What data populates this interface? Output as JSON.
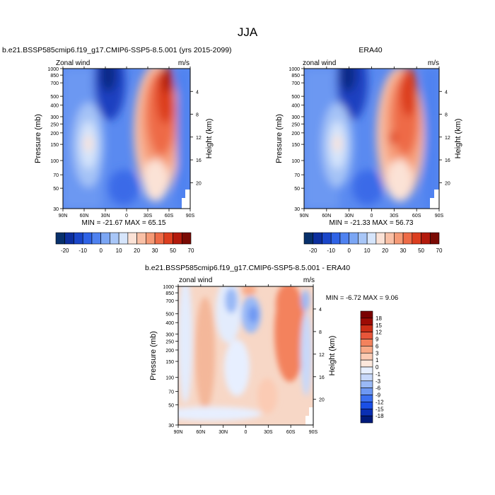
{
  "page": {
    "main_title": "JJA"
  },
  "colors": {
    "cmap_a": [
      "#08306b",
      "#0d2f9e",
      "#1a46c9",
      "#2f63e6",
      "#4f82f0",
      "#7ba6f4",
      "#a8c6f7",
      "#d6e5fb",
      "#fbe2d6",
      "#f9c0a6",
      "#f59a76",
      "#ee6b47",
      "#dc3e1f",
      "#b31a0c",
      "#7a0a04"
    ],
    "cmap_d": [
      "#001a7a",
      "#0a2fb3",
      "#1a4fe6",
      "#3b6ff0",
      "#6e98f3",
      "#9ab9f6",
      "#c7d8fa",
      "#e7efff",
      "#fde8dc",
      "#fbcbb4",
      "#f8a987",
      "#f3825d",
      "#e8563a",
      "#cc2e16",
      "#9c0b04",
      "#7a0000"
    ]
  },
  "panels": [
    {
      "subtitle": "b.e21.BSSP585cmip6.f19_g17.CMIP6-SSP5-8.5.001 (yrs 2015-2099)",
      "field_label": "Zonal wind",
      "units": "m/s",
      "stats": "MIN = -21.67   MAX =  65.15"
    },
    {
      "subtitle": "ERA40",
      "field_label": "zonal wind",
      "units": "m/s",
      "stats": "MIN = -21.33   MAX =  56.73"
    },
    {
      "subtitle": "b.e21.BSSP585cmip6.f19_g17.CMIP6-SSP5-8.5.001 - ERA40",
      "field_label": "zonal wind",
      "units": "m/s",
      "stats": "MIN =  -6.72   MAX =   9.06"
    }
  ],
  "chart_data": [
    {
      "type": "heatmap",
      "title": "b.e21.BSSP585cmip6.f19_g17.CMIP6-SSP5-8.5.001 (yrs 2015-2099)",
      "field": "Zonal wind",
      "units": "m/s",
      "xlabel": "",
      "ylabel": "Pressure (mb)",
      "y2label": "Height (km)",
      "x_ticks": [
        "90N",
        "60N",
        "30N",
        "0",
        "30S",
        "60S",
        "90S"
      ],
      "x_values": [
        90,
        60,
        30,
        0,
        -30,
        -60,
        -90
      ],
      "y_ticks": [
        30,
        50,
        70,
        100,
        150,
        200,
        250,
        300,
        400,
        500,
        700,
        850,
        1000
      ],
      "y2_ticks": [
        4,
        8,
        12,
        16,
        20
      ],
      "ylim": [
        1000,
        30
      ],
      "min": -21.67,
      "max": 65.15,
      "colorbar_labels": [
        "-20",
        "-10",
        "0",
        "10",
        "20",
        "30",
        "50",
        "70"
      ],
      "colorbar_levels": [
        -25,
        -20,
        -15,
        -10,
        -5,
        0,
        5,
        10,
        15,
        20,
        25,
        30,
        40,
        50,
        60,
        70,
        80
      ],
      "features": [
        {
          "lat": -55,
          "p": 30,
          "value": 60
        },
        {
          "lat": -45,
          "p": 200,
          "value": 30
        },
        {
          "lat": -30,
          "p": 500,
          "value": 15
        },
        {
          "lat": 40,
          "p": 200,
          "value": 18
        },
        {
          "lat": 15,
          "p": 30,
          "value": -20
        },
        {
          "lat": 10,
          "p": 500,
          "value": -5
        },
        {
          "lat": 85,
          "p": 30,
          "value": 5
        }
      ]
    },
    {
      "type": "heatmap",
      "title": "ERA40",
      "field": "zonal wind",
      "units": "m/s",
      "xlabel": "",
      "ylabel": "Pressure (mb)",
      "y2label": "Height (km)",
      "x_ticks": [
        "90N",
        "60N",
        "30N",
        "0",
        "30S",
        "60S",
        "90S"
      ],
      "x_values": [
        90,
        60,
        30,
        0,
        -30,
        -60,
        -90
      ],
      "y_ticks": [
        30,
        50,
        70,
        100,
        150,
        200,
        250,
        300,
        400,
        500,
        700,
        850,
        1000
      ],
      "y2_ticks": [
        4,
        8,
        12,
        16,
        20
      ],
      "ylim": [
        1000,
        30
      ],
      "min": -21.33,
      "max": 56.73,
      "colorbar_labels": [
        "-20",
        "-10",
        "0",
        "10",
        "20",
        "30",
        "50",
        "70"
      ],
      "colorbar_levels": [
        -25,
        -20,
        -15,
        -10,
        -5,
        0,
        5,
        10,
        15,
        20,
        25,
        30,
        40,
        50,
        60,
        70,
        80
      ],
      "features": [
        {
          "lat": -55,
          "p": 30,
          "value": 50
        },
        {
          "lat": -45,
          "p": 200,
          "value": 28
        },
        {
          "lat": -30,
          "p": 500,
          "value": 12
        },
        {
          "lat": 40,
          "p": 200,
          "value": 16
        },
        {
          "lat": 15,
          "p": 30,
          "value": -20
        },
        {
          "lat": 10,
          "p": 500,
          "value": -5
        }
      ]
    },
    {
      "type": "heatmap",
      "title": "b.e21.BSSP585cmip6.f19_g17.CMIP6-SSP5-8.5.001 - ERA40",
      "field": "zonal wind",
      "units": "m/s",
      "xlabel": "",
      "ylabel": "Pressure (mb)",
      "y2label": "Height (km)",
      "x_ticks": [
        "90N",
        "60N",
        "30N",
        "0",
        "30S",
        "60S",
        "90S"
      ],
      "x_values": [
        90,
        60,
        30,
        0,
        -30,
        -60,
        -90
      ],
      "y_ticks": [
        30,
        50,
        70,
        100,
        150,
        200,
        250,
        300,
        400,
        500,
        700,
        850,
        1000
      ],
      "y2_ticks": [
        4,
        8,
        12,
        16,
        20
      ],
      "ylim": [
        1000,
        30
      ],
      "min": -6.72,
      "max": 9.06,
      "colorbar_labels": [
        "18",
        "15",
        "12",
        "9",
        "6",
        "3",
        "1",
        "0",
        "-1",
        "-3",
        "-6",
        "-9",
        "-12",
        "-15",
        "-18"
      ],
      "colorbar_levels": [
        -20,
        -18,
        -15,
        -12,
        -9,
        -6,
        -3,
        -1,
        0,
        1,
        3,
        6,
        9,
        12,
        15,
        18,
        20
      ],
      "features": [
        {
          "lat": -45,
          "p": 50,
          "value": 6
        },
        {
          "lat": -25,
          "p": 200,
          "value": 3
        },
        {
          "lat": 0,
          "p": 30,
          "value": 2
        },
        {
          "lat": 75,
          "p": 100,
          "value": 1
        },
        {
          "lat": 30,
          "p": 70,
          "value": -2
        },
        {
          "lat": 10,
          "p": 100,
          "value": -3
        },
        {
          "lat": -80,
          "p": 200,
          "value": -1
        }
      ]
    }
  ]
}
